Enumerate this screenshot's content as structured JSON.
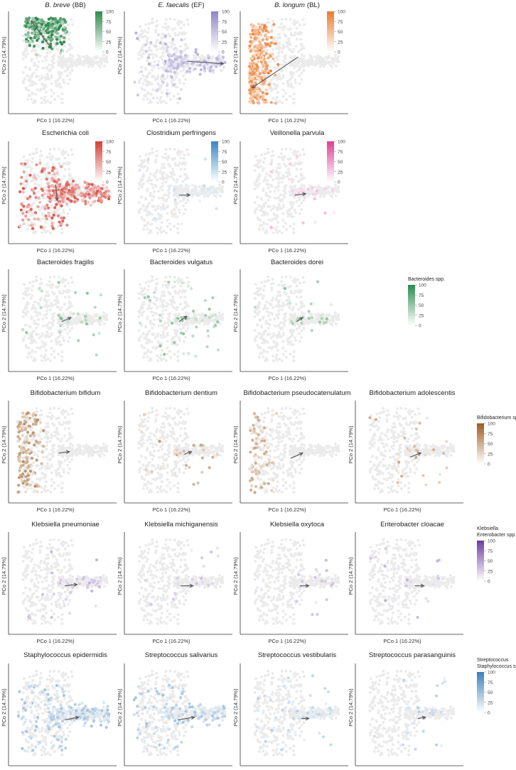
{
  "figure": {
    "shared_axes": {
      "xlabel": "PCo 1 (16.22%)",
      "ylabel": "PCo 2 (14.79%)"
    },
    "scale_ticks": [
      "100",
      "75",
      "50",
      "25",
      "0"
    ]
  },
  "colors": {
    "green": "#2f8a4e",
    "purple": "#8e86c4",
    "orange": "#ea7a2d",
    "red": "#d43f35",
    "blue": "#3a86c2",
    "pink": "#de3f93",
    "bact_green": "#2e8b4f",
    "bifido_brown": "#9b5d21",
    "kleb_purple": "#6b3fa0",
    "strep_blue": "#3b7fb8",
    "background_point": "#ebebeb",
    "arrow": "#555555"
  },
  "legends": {
    "bacteroides": {
      "lines": [
        "Bacteroides spp."
      ],
      "color": "bact_green"
    },
    "bifidobacterium": {
      "lines": [
        "Bifidobacterium spp."
      ],
      "color": "bifido_brown"
    },
    "klebsiella": {
      "lines": [
        "Klebsiella",
        "Enterobacter spp."
      ],
      "color": "kleb_purple"
    },
    "streptococcus": {
      "lines": [
        "Streptococcus",
        "Staphylococcus spp."
      ],
      "color": "strep_blue"
    }
  },
  "chart_data": [
    {
      "type": "scatter",
      "title": "B. breve",
      "title_italic": true,
      "title_suffix": "(BB)",
      "color": "green",
      "region": "top",
      "intensity": 0.95,
      "n_colored": 260,
      "arrow": {
        "x1": -0.05,
        "y1": 0.1,
        "x2": -0.18,
        "y2": 0.3
      },
      "legend": "inline",
      "ylim": [
        -0.35,
        0.35
      ],
      "xlim": [
        -0.3,
        0.35
      ]
    },
    {
      "type": "scatter",
      "title": "E. faecalis",
      "title_italic": true,
      "title_suffix": "(EF)",
      "color": "purple",
      "region": "right",
      "intensity": 0.55,
      "n_colored": 170,
      "arrow": {
        "x1": 0.08,
        "y1": 0.0,
        "x2": 0.32,
        "y2": -0.02
      },
      "legend": "inline",
      "ylim": [
        -0.35,
        0.35
      ],
      "xlim": [
        -0.3,
        0.35
      ]
    },
    {
      "type": "scatter",
      "title": "B. longum",
      "title_italic": true,
      "title_suffix": "(BL)",
      "color": "orange",
      "region": "left",
      "intensity": 0.8,
      "n_colored": 300,
      "arrow": {
        "x1": 0.05,
        "y1": 0.03,
        "x2": -0.25,
        "y2": -0.2
      },
      "legend": "inline",
      "ylim": [
        -0.35,
        0.35
      ],
      "xlim": [
        -0.3,
        0.35
      ]
    },
    {
      "type": "scatter",
      "title": "Escherichia coli",
      "title_italic": false,
      "title_suffix": "",
      "color": "red",
      "region": "right",
      "intensity": 0.75,
      "n_colored": 320,
      "arrow": {
        "x1": -0.02,
        "y1": 0.05,
        "x2": -0.01,
        "y2": -0.07
      },
      "legend": "inline",
      "ylim": [
        -0.35,
        0.35
      ],
      "xlim": [
        -0.3,
        0.35
      ]
    },
    {
      "type": "scatter",
      "title": "Clostridium perfringens",
      "title_italic": false,
      "title_suffix": "",
      "color": "blue",
      "region": "sparse",
      "intensity": 0.25,
      "n_colored": 30,
      "arrow": {
        "x1": 0.03,
        "y1": -0.03,
        "x2": 0.1,
        "y2": -0.03
      },
      "legend": "inline",
      "ylim": [
        -0.35,
        0.35
      ],
      "xlim": [
        -0.3,
        0.35
      ]
    },
    {
      "type": "scatter",
      "title": "Veillonella parvula",
      "title_italic": false,
      "title_suffix": "",
      "color": "pink",
      "region": "sparse",
      "intensity": 0.3,
      "n_colored": 30,
      "arrow": {
        "x1": 0.03,
        "y1": -0.03,
        "x2": 0.1,
        "y2": -0.02
      },
      "legend": "inline",
      "ylim": [
        -0.35,
        0.35
      ],
      "xlim": [
        -0.3,
        0.35
      ]
    },
    {
      "type": "scatter",
      "title": "Bacteroides fragilis",
      "title_italic": false,
      "title_suffix": "",
      "color": "bact_green",
      "region": "sparse",
      "intensity": 0.5,
      "n_colored": 30,
      "arrow": {
        "x1": 0.02,
        "y1": -0.02,
        "x2": 0.08,
        "y2": 0.01
      },
      "legend": "bacteroides",
      "ylim": [
        -0.35,
        0.35
      ],
      "xlim": [
        -0.3,
        0.35
      ]
    },
    {
      "type": "scatter",
      "title": "Bacteroides vulgatus",
      "title_italic": false,
      "title_suffix": "",
      "color": "bact_green",
      "region": "sparse",
      "intensity": 0.45,
      "n_colored": 50,
      "arrow": {
        "x1": 0.03,
        "y1": -0.02,
        "x2": 0.08,
        "y2": 0.02
      },
      "legend": "bacteroides",
      "ylim": [
        -0.35,
        0.35
      ],
      "xlim": [
        -0.3,
        0.35
      ]
    },
    {
      "type": "scatter",
      "title": "Bacteroides dorei",
      "title_italic": false,
      "title_suffix": "",
      "color": "bact_green",
      "region": "sparse",
      "intensity": 0.45,
      "n_colored": 25,
      "arrow": {
        "x1": 0.04,
        "y1": -0.02,
        "x2": 0.08,
        "y2": 0.01
      },
      "legend": "bacteroides",
      "ylim": [
        -0.35,
        0.35
      ],
      "xlim": [
        -0.3,
        0.35
      ]
    },
    {
      "type": "scatter",
      "title": "Bifidobacterium bifidum",
      "title_italic": false,
      "title_suffix": "",
      "color": "bifido_brown",
      "region": "left",
      "intensity": 0.6,
      "n_colored": 150,
      "arrow": {
        "x1": 0.0,
        "y1": -0.02,
        "x2": 0.07,
        "y2": -0.01
      },
      "legend": "bifidobacterium",
      "ylim": [
        -0.35,
        0.35
      ],
      "xlim": [
        -0.3,
        0.35
      ]
    },
    {
      "type": "scatter",
      "title": "Bifidobacterium dentium",
      "title_italic": false,
      "title_suffix": "",
      "color": "bifido_brown",
      "region": "sparse",
      "intensity": 0.55,
      "n_colored": 30,
      "arrow": {
        "x1": 0.06,
        "y1": -0.03,
        "x2": 0.11,
        "y2": -0.01
      },
      "legend": "bifidobacterium",
      "ylim": [
        -0.35,
        0.35
      ],
      "xlim": [
        -0.3,
        0.35
      ]
    },
    {
      "type": "scatter",
      "title": "Bifidobacterium pseudocatenulatum",
      "title_italic": false,
      "title_suffix": "",
      "color": "bifido_brown",
      "region": "left",
      "intensity": 0.45,
      "n_colored": 80,
      "arrow": {
        "x1": 0.0,
        "y1": -0.06,
        "x2": 0.08,
        "y2": -0.02
      },
      "legend": "bifidobacterium",
      "ylim": [
        -0.35,
        0.35
      ],
      "xlim": [
        -0.3,
        0.35
      ]
    },
    {
      "type": "scatter",
      "title": "Bifidobacterium adolescentis",
      "title_italic": false,
      "title_suffix": "",
      "color": "bifido_brown",
      "region": "sparse",
      "intensity": 0.45,
      "n_colored": 30,
      "arrow": {
        "x1": 0.03,
        "y1": -0.05,
        "x2": 0.1,
        "y2": -0.02
      },
      "legend": "bifidobacterium",
      "ylim": [
        -0.35,
        0.35
      ],
      "xlim": [
        -0.3,
        0.35
      ]
    },
    {
      "type": "scatter",
      "title": "Klebsiella pneumoniae",
      "title_italic": false,
      "title_suffix": "",
      "color": "kleb_purple",
      "region": "sparse",
      "intensity": 0.35,
      "n_colored": 50,
      "arrow": {
        "x1": 0.04,
        "y1": -0.03,
        "x2": 0.12,
        "y2": -0.02
      },
      "legend": "klebsiella",
      "ylim": [
        -0.35,
        0.35
      ],
      "xlim": [
        -0.3,
        0.35
      ]
    },
    {
      "type": "scatter",
      "title": "Klebsiella michiganensis",
      "title_italic": false,
      "title_suffix": "",
      "color": "kleb_purple",
      "region": "sparse",
      "intensity": 0.3,
      "n_colored": 25,
      "arrow": {
        "x1": 0.04,
        "y1": -0.03,
        "x2": 0.12,
        "y2": -0.03
      },
      "legend": "klebsiella",
      "ylim": [
        -0.35,
        0.35
      ],
      "xlim": [
        -0.3,
        0.35
      ]
    },
    {
      "type": "scatter",
      "title": "Klebsiella oxytoca",
      "title_italic": false,
      "title_suffix": "",
      "color": "kleb_purple",
      "region": "sparse",
      "intensity": 0.3,
      "n_colored": 20,
      "arrow": {
        "x1": 0.06,
        "y1": -0.03,
        "x2": 0.12,
        "y2": -0.03
      },
      "legend": "klebsiella",
      "ylim": [
        -0.35,
        0.35
      ],
      "xlim": [
        -0.3,
        0.35
      ]
    },
    {
      "type": "scatter",
      "title": "Enterobacter cloacae",
      "title_italic": false,
      "title_suffix": "",
      "color": "kleb_purple",
      "region": "sparse",
      "intensity": 0.35,
      "n_colored": 20,
      "arrow": {
        "x1": 0.06,
        "y1": -0.03,
        "x2": 0.12,
        "y2": -0.03
      },
      "legend": "klebsiella",
      "ylim": [
        -0.35,
        0.35
      ],
      "xlim": [
        -0.3,
        0.35
      ]
    },
    {
      "type": "scatter",
      "title": "Staphylococcus epidermidis",
      "title_italic": false,
      "title_suffix": "",
      "color": "strep_blue",
      "region": "right",
      "intensity": 0.4,
      "n_colored": 220,
      "arrow": {
        "x1": 0.04,
        "y1": -0.05,
        "x2": 0.13,
        "y2": -0.03
      },
      "legend": "streptococcus",
      "ylim": [
        -0.35,
        0.35
      ],
      "xlim": [
        -0.3,
        0.35
      ]
    },
    {
      "type": "scatter",
      "title": "Streptococcus salivarius",
      "title_italic": false,
      "title_suffix": "",
      "color": "strep_blue",
      "region": "right",
      "intensity": 0.4,
      "n_colored": 150,
      "arrow": {
        "x1": 0.02,
        "y1": -0.05,
        "x2": 0.13,
        "y2": -0.03
      },
      "legend": "streptococcus",
      "ylim": [
        -0.35,
        0.35
      ],
      "xlim": [
        -0.3,
        0.35
      ]
    },
    {
      "type": "scatter",
      "title": "Streptococcus vestibularis",
      "title_italic": false,
      "title_suffix": "",
      "color": "strep_blue",
      "region": "sparse",
      "intensity": 0.3,
      "n_colored": 60,
      "arrow": {
        "x1": 0.07,
        "y1": -0.04,
        "x2": 0.12,
        "y2": -0.04
      },
      "legend": "streptococcus",
      "ylim": [
        -0.35,
        0.35
      ],
      "xlim": [
        -0.3,
        0.35
      ]
    },
    {
      "type": "scatter",
      "title": "Streptococcus parasanguinis",
      "title_italic": false,
      "title_suffix": "",
      "color": "strep_blue",
      "region": "sparse",
      "intensity": 0.3,
      "n_colored": 30,
      "arrow": {
        "x1": 0.08,
        "y1": -0.04,
        "x2": 0.13,
        "y2": -0.03
      },
      "legend": "streptococcus",
      "ylim": [
        -0.35,
        0.35
      ],
      "xlim": [
        -0.3,
        0.35
      ]
    }
  ]
}
